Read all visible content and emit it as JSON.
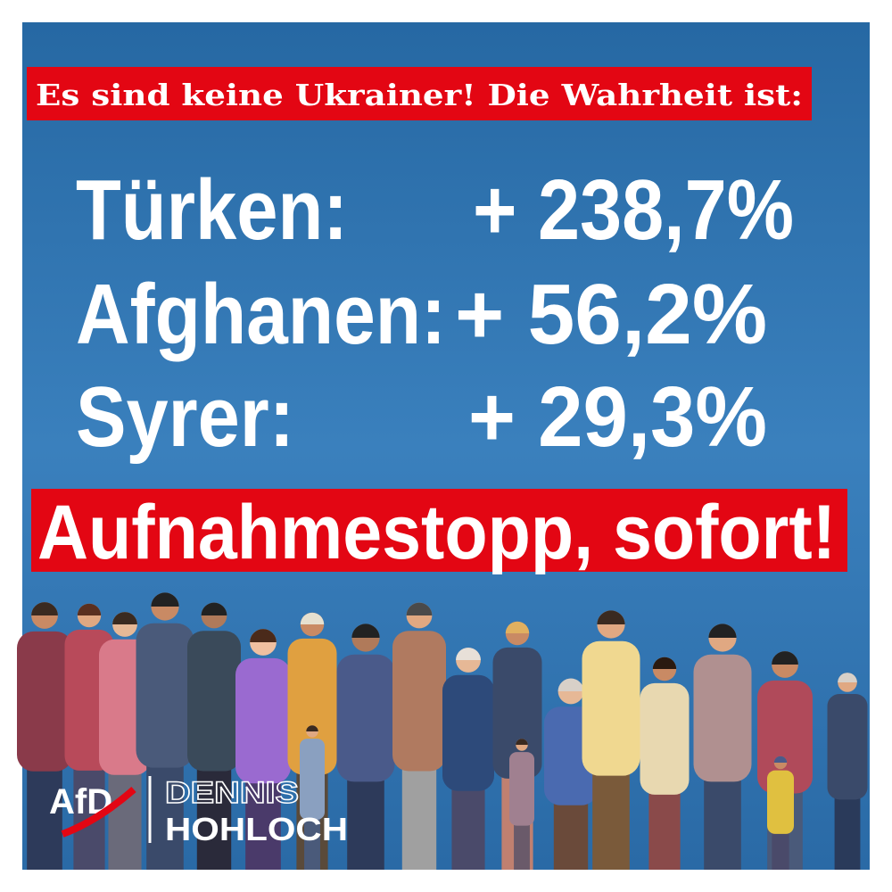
{
  "headline": "Es sind keine Ukrainer! Die Wahrheit ist:",
  "rows": [
    {
      "label": "Türken:",
      "change": "+ 238,7%"
    },
    {
      "label": "Afghanen:",
      "change": "+ 56,2%"
    },
    {
      "label": "Syrer:",
      "change": "+ 29,3%"
    }
  ],
  "demand": "Aufnahmestopp, sofort!",
  "logo": {
    "party": "AfD",
    "name_line1": "DENNIS",
    "name_line2": "HOHLOCH"
  }
}
